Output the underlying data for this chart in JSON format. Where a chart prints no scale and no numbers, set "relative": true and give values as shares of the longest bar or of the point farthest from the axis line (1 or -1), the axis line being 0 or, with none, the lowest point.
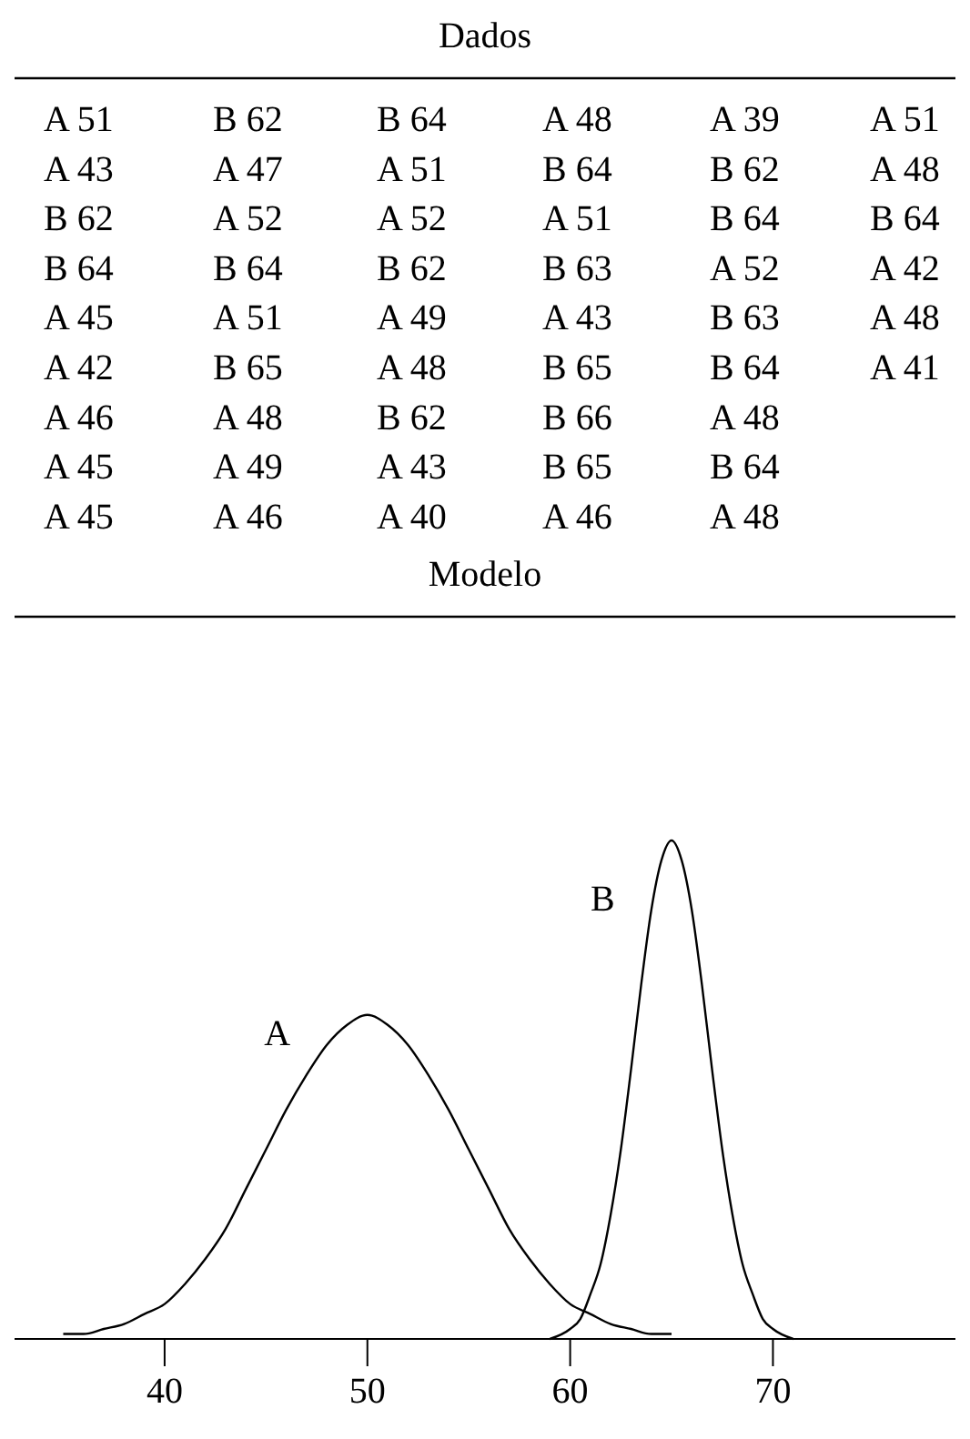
{
  "chart_data": [
    {
      "type": "other",
      "title": "Dados",
      "annotations": [
        "A 51",
        "A 43",
        "B 62",
        "B 64",
        "A 45",
        "A 42",
        "A 46",
        "A 45",
        "A 45",
        "B 62",
        "A 47",
        "A 52",
        "B 64",
        "A 51",
        "B 65",
        "A 48",
        "A 49",
        "A 46",
        "B 64",
        "A 51",
        "A 52",
        "B 62",
        "A 49",
        "A 48",
        "B 62",
        "A 43",
        "A 40",
        "A 48",
        "B 64",
        "A 51",
        "B 63",
        "A 43",
        "B 65",
        "B 66",
        "B 65",
        "A 46",
        "A 39",
        "B 62",
        "B 64",
        "A 52",
        "B 63",
        "B 64",
        "A 48",
        "B 64",
        "A 48",
        "A 51",
        "A 48",
        "B 64",
        "A 42",
        "A 48",
        "A 41"
      ]
    },
    {
      "type": "line",
      "title": "Modelo",
      "relative": true,
      "xlim": [
        32.6,
        79
      ],
      "xticks": [
        40,
        50,
        60,
        70
      ],
      "series": [
        {
          "name": "A",
          "color": "#000000",
          "x": [
            35,
            36,
            37,
            38,
            39,
            40,
            41,
            42,
            43,
            44,
            45,
            46,
            47,
            48,
            49,
            50,
            51,
            52,
            53,
            54,
            55,
            56,
            57,
            58,
            59,
            60,
            61,
            62,
            63,
            64,
            65
          ],
          "values": [
            0.01,
            0.01,
            0.02,
            0.03,
            0.05,
            0.07,
            0.11,
            0.16,
            0.22,
            0.3,
            0.38,
            0.46,
            0.53,
            0.59,
            0.63,
            0.65,
            0.63,
            0.59,
            0.53,
            0.46,
            0.38,
            0.3,
            0.22,
            0.16,
            0.11,
            0.07,
            0.05,
            0.03,
            0.02,
            0.01,
            0.01
          ]
        },
        {
          "name": "B",
          "color": "#000000",
          "x": [
            59,
            60,
            60.5,
            61,
            61.5,
            62,
            62.5,
            63,
            63.5,
            64,
            64.5,
            65,
            65.5,
            66,
            66.5,
            67,
            67.5,
            68,
            68.5,
            69,
            69.5,
            70,
            71
          ],
          "values": [
            0,
            0.02,
            0.04,
            0.09,
            0.15,
            0.25,
            0.38,
            0.54,
            0.71,
            0.86,
            0.96,
            1,
            0.96,
            0.86,
            0.71,
            0.54,
            0.38,
            0.25,
            0.15,
            0.09,
            0.04,
            0.02,
            0
          ]
        }
      ]
    }
  ]
}
